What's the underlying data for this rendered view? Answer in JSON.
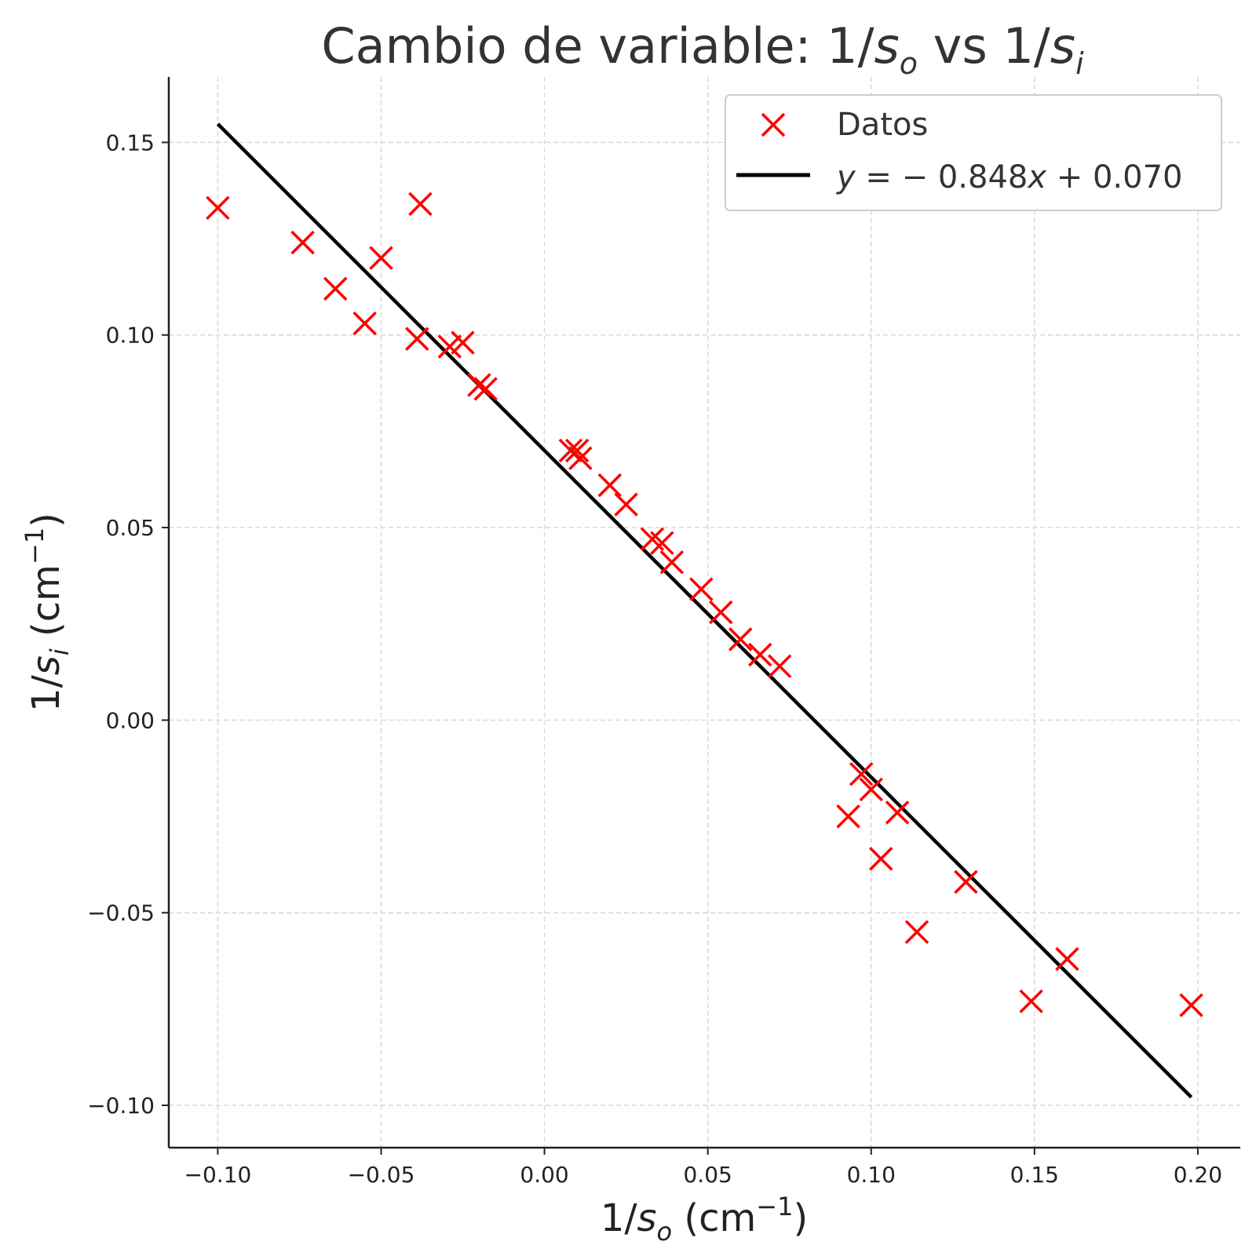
{
  "chart_data": {
    "type": "scatter",
    "title_text": "Cambio de variable: 1/",
    "title_sub_o": "o",
    "title_vs": " vs 1/",
    "title_sub_i": "i",
    "xlabel_prefix": "1/",
    "xlabel_sub": "o",
    "xlabel_unit": " (cm",
    "xlabel_sup": "−1",
    "xlabel_close": ")",
    "ylabel_prefix": "1/",
    "ylabel_sub": "i",
    "ylabel_unit": " (cm",
    "ylabel_sup": "−1",
    "ylabel_close": ")",
    "xlim": [
      -0.115,
      0.213
    ],
    "ylim": [
      -0.111,
      0.167
    ],
    "xticks": [
      -0.1,
      -0.05,
      0.0,
      0.05,
      0.1,
      0.15,
      0.2
    ],
    "xtick_labels": [
      "−0.10",
      "−0.05",
      "0.00",
      "0.05",
      "0.10",
      "0.15",
      "0.20"
    ],
    "yticks": [
      -0.1,
      -0.05,
      0.0,
      0.05,
      0.1,
      0.15
    ],
    "ytick_labels": [
      "−0.10",
      "−0.05",
      "0.00",
      "0.05",
      "0.10",
      "0.15"
    ],
    "grid": true,
    "legend_position": "top-right",
    "series": [
      {
        "name": "Datos",
        "kind": "scatter",
        "marker": "x",
        "color": "#ff0000",
        "points": [
          [
            -0.1,
            0.133
          ],
          [
            -0.074,
            0.124
          ],
          [
            -0.064,
            0.112
          ],
          [
            -0.055,
            0.103
          ],
          [
            -0.05,
            0.12
          ],
          [
            -0.039,
            0.099
          ],
          [
            -0.038,
            0.134
          ],
          [
            -0.029,
            0.097
          ],
          [
            -0.025,
            0.098
          ],
          [
            -0.02,
            0.087
          ],
          [
            -0.018,
            0.086
          ],
          [
            0.008,
            0.07
          ],
          [
            0.01,
            0.07
          ],
          [
            0.011,
            0.068
          ],
          [
            0.02,
            0.061
          ],
          [
            0.025,
            0.056
          ],
          [
            0.033,
            0.047
          ],
          [
            0.036,
            0.046
          ],
          [
            0.039,
            0.041
          ],
          [
            0.048,
            0.034
          ],
          [
            0.054,
            0.028
          ],
          [
            0.06,
            0.021
          ],
          [
            0.066,
            0.017
          ],
          [
            0.072,
            0.014
          ],
          [
            0.093,
            -0.025
          ],
          [
            0.097,
            -0.014
          ],
          [
            0.1,
            -0.018
          ],
          [
            0.103,
            -0.036
          ],
          [
            0.108,
            -0.024
          ],
          [
            0.114,
            -0.055
          ],
          [
            0.129,
            -0.042
          ],
          [
            0.149,
            -0.073
          ],
          [
            0.16,
            -0.062
          ],
          [
            0.198,
            -0.074
          ]
        ]
      },
      {
        "name": "y = −0.848x + 0.070",
        "kind": "line",
        "color": "#000000",
        "slope": -0.848,
        "intercept": 0.07,
        "x_range": [
          -0.1,
          0.198
        ]
      }
    ],
    "legend": [
      {
        "label": "Datos",
        "marker": "x",
        "color": "#ff0000"
      },
      {
        "label_y": "y",
        "label_rest": " = − 0.848",
        "label_x": "x",
        "label_tail": " + 0.070",
        "marker": "line",
        "color": "#000000"
      }
    ]
  }
}
